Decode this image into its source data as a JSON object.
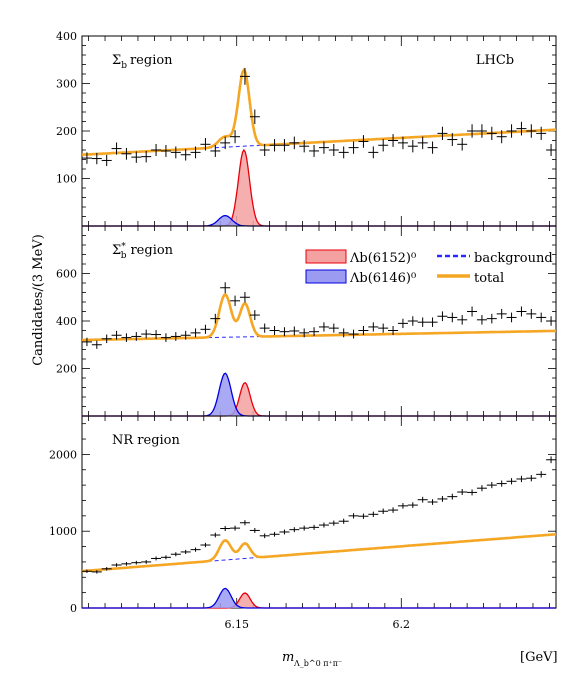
{
  "chart_data": [
    {
      "type": "line",
      "label": "Σ_b region",
      "experiment": "LHCb",
      "ylim": [
        0,
        400
      ],
      "yticks": [
        "100",
        "200",
        "300",
        "400"
      ],
      "red_peak": {
        "mean": 6.1522,
        "sigma": 0.0017,
        "amp": 160
      },
      "blue_peak": {
        "mean": 6.1465,
        "sigma": 0.002,
        "amp": 22
      },
      "background": {
        "slope": 1.1,
        "intercept": 150
      },
      "data": [
        [
          6.1045,
          143
        ],
        [
          6.1075,
          142
        ],
        [
          6.1105,
          138
        ],
        [
          6.1135,
          163
        ],
        [
          6.1165,
          152
        ],
        [
          6.1195,
          145
        ],
        [
          6.1225,
          146
        ],
        [
          6.1255,
          160
        ],
        [
          6.1285,
          158
        ],
        [
          6.1315,
          155
        ],
        [
          6.1345,
          150
        ],
        [
          6.1375,
          155
        ],
        [
          6.1405,
          172
        ],
        [
          6.1435,
          158
        ],
        [
          6.1465,
          175
        ],
        [
          6.1495,
          188
        ],
        [
          6.1525,
          315
        ],
        [
          6.1555,
          230
        ],
        [
          6.1585,
          160
        ],
        [
          6.1615,
          170
        ],
        [
          6.1645,
          170
        ],
        [
          6.1675,
          175
        ],
        [
          6.1705,
          168
        ],
        [
          6.1735,
          158
        ],
        [
          6.1765,
          165
        ],
        [
          6.1795,
          160
        ],
        [
          6.1825,
          155
        ],
        [
          6.1855,
          165
        ],
        [
          6.1885,
          178
        ],
        [
          6.1915,
          155
        ],
        [
          6.1945,
          170
        ],
        [
          6.1975,
          180
        ],
        [
          6.2005,
          175
        ],
        [
          6.2035,
          168
        ],
        [
          6.2065,
          175
        ],
        [
          6.2095,
          165
        ],
        [
          6.2125,
          195
        ],
        [
          6.2155,
          182
        ],
        [
          6.2185,
          172
        ],
        [
          6.2215,
          200
        ],
        [
          6.2245,
          200
        ],
        [
          6.2275,
          195
        ],
        [
          6.2305,
          188
        ],
        [
          6.2335,
          200
        ],
        [
          6.2365,
          205
        ],
        [
          6.2395,
          200
        ],
        [
          6.2425,
          195
        ],
        [
          6.2455,
          160
        ]
      ]
    },
    {
      "type": "line",
      "label": "Σ*_b region",
      "ylim": [
        0,
        800
      ],
      "yticks": [
        "200",
        "400",
        "600"
      ],
      "red_peak": {
        "mean": 6.1525,
        "sigma": 0.0016,
        "amp": 140
      },
      "blue_peak": {
        "mean": 6.1465,
        "sigma": 0.0018,
        "amp": 180
      },
      "background": {
        "slope": 0.8,
        "intercept": 320
      },
      "data": [
        [
          6.1045,
          312
        ],
        [
          6.1075,
          300
        ],
        [
          6.1105,
          325
        ],
        [
          6.1135,
          340
        ],
        [
          6.1165,
          330
        ],
        [
          6.1195,
          335
        ],
        [
          6.1225,
          345
        ],
        [
          6.1255,
          343
        ],
        [
          6.1285,
          330
        ],
        [
          6.1315,
          335
        ],
        [
          6.1345,
          340
        ],
        [
          6.1375,
          350
        ],
        [
          6.1405,
          365
        ],
        [
          6.1435,
          410
        ],
        [
          6.1465,
          540
        ],
        [
          6.1495,
          485
        ],
        [
          6.1525,
          500
        ],
        [
          6.1555,
          425
        ],
        [
          6.1585,
          370
        ],
        [
          6.1615,
          360
        ],
        [
          6.1645,
          355
        ],
        [
          6.1675,
          358
        ],
        [
          6.1705,
          350
        ],
        [
          6.1735,
          355
        ],
        [
          6.1765,
          375
        ],
        [
          6.1795,
          370
        ],
        [
          6.1825,
          350
        ],
        [
          6.1855,
          345
        ],
        [
          6.1885,
          360
        ],
        [
          6.1915,
          375
        ],
        [
          6.1945,
          370
        ],
        [
          6.1975,
          360
        ],
        [
          6.2005,
          390
        ],
        [
          6.2035,
          400
        ],
        [
          6.2065,
          395
        ],
        [
          6.2095,
          395
        ],
        [
          6.2125,
          420
        ],
        [
          6.2155,
          415
        ],
        [
          6.2185,
          405
        ],
        [
          6.2215,
          440
        ],
        [
          6.2245,
          405
        ],
        [
          6.2275,
          410
        ],
        [
          6.2305,
          430
        ],
        [
          6.2335,
          415
        ],
        [
          6.2365,
          440
        ],
        [
          6.2395,
          430
        ],
        [
          6.2425,
          415
        ],
        [
          6.2455,
          400
        ]
      ]
    },
    {
      "type": "line",
      "label": "NR region",
      "ylim": [
        0,
        2500
      ],
      "yticks": [
        "0",
        "1000",
        "2000"
      ],
      "red_peak": {
        "mean": 6.1525,
        "sigma": 0.0016,
        "amp": 195
      },
      "blue_peak": {
        "mean": 6.1465,
        "sigma": 0.0018,
        "amp": 255
      },
      "background": {
        "slope": 10.0,
        "intercept": 480
      },
      "data": [
        [
          6.1045,
          478
        ],
        [
          6.1075,
          470
        ],
        [
          6.1105,
          510
        ],
        [
          6.1135,
          560
        ],
        [
          6.1165,
          575
        ],
        [
          6.1195,
          590
        ],
        [
          6.1225,
          600
        ],
        [
          6.1255,
          645
        ],
        [
          6.1285,
          660
        ],
        [
          6.1315,
          700
        ],
        [
          6.1345,
          730
        ],
        [
          6.1375,
          760
        ],
        [
          6.1405,
          820
        ],
        [
          6.1435,
          950
        ],
        [
          6.1465,
          1035
        ],
        [
          6.1495,
          1040
        ],
        [
          6.1525,
          1110
        ],
        [
          6.1555,
          1010
        ],
        [
          6.1585,
          940
        ],
        [
          6.1615,
          960
        ],
        [
          6.1645,
          990
        ],
        [
          6.1675,
          1020
        ],
        [
          6.1705,
          1040
        ],
        [
          6.1735,
          1050
        ],
        [
          6.1765,
          1080
        ],
        [
          6.1795,
          1105
        ],
        [
          6.1825,
          1130
        ],
        [
          6.1855,
          1200
        ],
        [
          6.1885,
          1195
        ],
        [
          6.1915,
          1220
        ],
        [
          6.1945,
          1260
        ],
        [
          6.1975,
          1275
        ],
        [
          6.2005,
          1330
        ],
        [
          6.2035,
          1340
        ],
        [
          6.2065,
          1410
        ],
        [
          6.2095,
          1380
        ],
        [
          6.2125,
          1420
        ],
        [
          6.2155,
          1450
        ],
        [
          6.2185,
          1510
        ],
        [
          6.2215,
          1505
        ],
        [
          6.2245,
          1560
        ],
        [
          6.2275,
          1600
        ],
        [
          6.2305,
          1620
        ],
        [
          6.2335,
          1650
        ],
        [
          6.2365,
          1680
        ],
        [
          6.2395,
          1690
        ],
        [
          6.2425,
          1740
        ],
        [
          6.2455,
          1930
        ]
      ]
    }
  ],
  "axes": {
    "xlim": [
      6.103,
      6.247
    ],
    "xticks": [
      {
        "value": 6.15,
        "label": "6.15"
      },
      {
        "value": 6.2,
        "label": "6.2"
      }
    ],
    "ylabel": "Candidates/(3 MeV)",
    "xlabel": "m",
    "xlabel_sub": "Λ_b^0 π⁺π⁻",
    "xunit": "[GeV]"
  },
  "legend": {
    "red": "Λb(6152)⁰",
    "blue": "Λb(6146)⁰",
    "background": "background",
    "total": "total"
  },
  "colors": {
    "red_line": "#e8000b",
    "red_fill": "#f4a1a1",
    "blue_line": "#0000e0",
    "blue_fill": "#9b9bf2",
    "total": "#f5a623",
    "bkg": "#2a2aff"
  }
}
